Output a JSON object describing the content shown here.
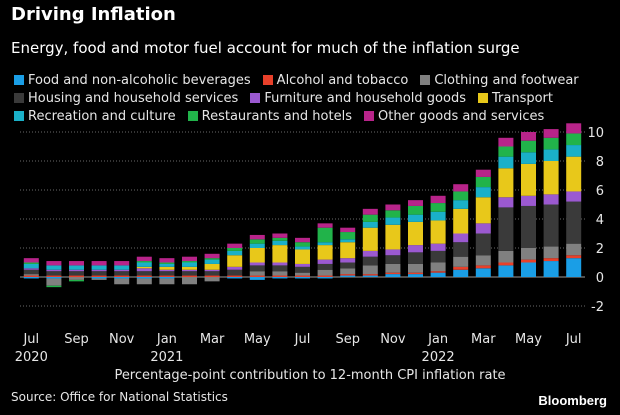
{
  "header": {
    "title": "Driving Inflation",
    "subtitle": "Energy, food and motor fuel account for much of the inflation surge"
  },
  "footer": {
    "xlabel": "Percentage-point contribution to 12-month CPI inflation rate",
    "source": "Source: Office for National Statistics",
    "brand": "Bloomberg"
  },
  "chart_data": {
    "type": "bar",
    "stacked": true,
    "title": "Driving Inflation",
    "subtitle": "Energy, food and motor fuel account for much of the inflation surge",
    "xlabel": "Percentage-point contribution to 12-month CPI inflation rate",
    "ylabel": "",
    "ylim": [
      -2,
      10
    ],
    "yticks": [
      -2,
      0,
      2,
      4,
      6,
      8,
      10
    ],
    "y_axis_side": "right",
    "grid": "horizontal dotted",
    "legend_position": "top",
    "categories": [
      "Jul 2020",
      "Aug 2020",
      "Sep 2020",
      "Oct 2020",
      "Nov 2020",
      "Dec 2020",
      "Jan 2021",
      "Feb 2021",
      "Mar 2021",
      "Apr 2021",
      "May 2021",
      "Jun 2021",
      "Jul 2021",
      "Aug 2021",
      "Sep 2021",
      "Oct 2021",
      "Nov 2021",
      "Dec 2021",
      "Jan 2022",
      "Feb 2022",
      "Mar 2022",
      "Apr 2022",
      "May 2022",
      "Jun 2022",
      "Jul 2022"
    ],
    "x_tick_labels": [
      {
        "index": 0,
        "label": "Jul",
        "sublabel": "2020"
      },
      {
        "index": 2,
        "label": "Sep",
        "sublabel": ""
      },
      {
        "index": 4,
        "label": "Nov",
        "sublabel": ""
      },
      {
        "index": 6,
        "label": "Jan",
        "sublabel": "2021"
      },
      {
        "index": 8,
        "label": "Mar",
        "sublabel": ""
      },
      {
        "index": 10,
        "label": "May",
        "sublabel": ""
      },
      {
        "index": 12,
        "label": "Jul",
        "sublabel": ""
      },
      {
        "index": 14,
        "label": "Sep",
        "sublabel": ""
      },
      {
        "index": 16,
        "label": "Nov",
        "sublabel": ""
      },
      {
        "index": 18,
        "label": "Jan",
        "sublabel": "2022"
      },
      {
        "index": 20,
        "label": "Mar",
        "sublabel": ""
      },
      {
        "index": 22,
        "label": "May",
        "sublabel": ""
      },
      {
        "index": 24,
        "label": "Jul",
        "sublabel": ""
      }
    ],
    "series": [
      {
        "name": "Food and non-alcoholic beverages",
        "color": "#1a9ee6",
        "values": [
          -0.1,
          -0.1,
          0.0,
          -0.1,
          -0.1,
          -0.1,
          -0.1,
          0.0,
          0.0,
          -0.1,
          -0.2,
          -0.1,
          -0.1,
          -0.1,
          0.1,
          0.1,
          0.2,
          0.2,
          0.3,
          0.5,
          0.6,
          0.8,
          1.0,
          1.1,
          1.3
        ]
      },
      {
        "name": "Alcohol and tobacco",
        "color": "#e8402a",
        "values": [
          0.1,
          0.1,
          0.1,
          0.1,
          0.1,
          0.1,
          0.1,
          0.1,
          0.1,
          0.1,
          0.1,
          0.1,
          0.1,
          0.1,
          0.1,
          0.1,
          0.1,
          0.1,
          0.1,
          0.2,
          0.2,
          0.2,
          0.2,
          0.2,
          0.2
        ]
      },
      {
        "name": "Clothing and footwear",
        "color": "#808080",
        "values": [
          0.1,
          -0.5,
          -0.2,
          -0.1,
          -0.4,
          -0.4,
          -0.4,
          -0.5,
          -0.3,
          0.0,
          0.3,
          0.3,
          0.2,
          0.4,
          0.4,
          0.6,
          0.6,
          0.6,
          0.6,
          0.7,
          0.7,
          0.8,
          0.8,
          0.8,
          0.8
        ]
      },
      {
        "name": "Housing and household services",
        "color": "#3a3a3a",
        "values": [
          0.3,
          0.3,
          0.3,
          0.3,
          0.3,
          0.3,
          0.3,
          0.3,
          0.3,
          0.4,
          0.4,
          0.4,
          0.4,
          0.4,
          0.4,
          0.6,
          0.6,
          0.8,
          0.8,
          1.0,
          1.5,
          3.0,
          2.9,
          2.9,
          2.9
        ]
      },
      {
        "name": "Furniture and household goods",
        "color": "#9b59d0",
        "values": [
          0.1,
          0.1,
          0.1,
          0.1,
          0.1,
          0.2,
          0.1,
          0.1,
          0.1,
          0.2,
          0.2,
          0.2,
          0.2,
          0.3,
          0.3,
          0.4,
          0.4,
          0.5,
          0.5,
          0.6,
          0.7,
          0.7,
          0.7,
          0.7,
          0.7
        ]
      },
      {
        "name": "Transport",
        "color": "#e8c81a",
        "values": [
          0.0,
          0.0,
          0.0,
          0.0,
          0.0,
          0.1,
          0.2,
          0.2,
          0.4,
          0.8,
          1.0,
          1.2,
          1.0,
          1.0,
          1.1,
          1.6,
          1.7,
          1.6,
          1.6,
          1.7,
          1.8,
          2.0,
          2.2,
          2.3,
          2.4
        ]
      },
      {
        "name": "Recreation and culture",
        "color": "#1ab0c8",
        "values": [
          0.3,
          0.3,
          0.3,
          0.3,
          0.3,
          0.3,
          0.2,
          0.3,
          0.3,
          0.3,
          0.3,
          0.3,
          0.2,
          0.2,
          0.2,
          0.4,
          0.5,
          0.5,
          0.6,
          0.6,
          0.7,
          0.8,
          0.8,
          0.8,
          0.8
        ]
      },
      {
        "name": "Restaurants and hotels",
        "color": "#21b34a",
        "values": [
          0.1,
          -0.1,
          -0.1,
          0.0,
          0.0,
          0.1,
          0.1,
          0.1,
          0.1,
          0.2,
          0.3,
          0.2,
          0.3,
          1.0,
          0.5,
          0.5,
          0.5,
          0.6,
          0.6,
          0.6,
          0.7,
          0.7,
          0.8,
          0.8,
          0.8
        ]
      },
      {
        "name": "Other goods and services",
        "color": "#b8248a",
        "values": [
          0.3,
          0.3,
          0.3,
          0.3,
          0.3,
          0.3,
          0.3,
          0.3,
          0.3,
          0.3,
          0.3,
          0.3,
          0.3,
          0.3,
          0.3,
          0.4,
          0.4,
          0.4,
          0.5,
          0.5,
          0.5,
          0.6,
          0.6,
          0.6,
          0.7
        ]
      }
    ]
  }
}
